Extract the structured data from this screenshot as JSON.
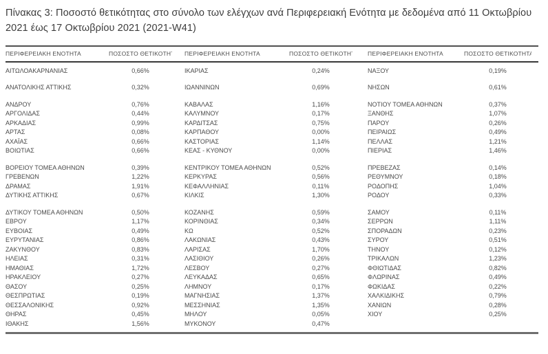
{
  "title": "Πίνακας 3: Ποσοστό θετικότητας στο σύνολο των ελέγχων ανά Περιφερειακή Ενότητα με δεδομένα από 11 Οκτωβρίου 2021 έως 17 Οκτωβρίου 2021 (2021-W41)",
  "table": {
    "headers": {
      "region": "ΠΕΡΙΦΕΡΕΙΑΚΗ ΕΝΟΤΗΤΑ",
      "rate": "ΠΟΣΟΣΤΟ ΘΕΤΙΚΟΤΗΤΑΣ"
    },
    "groups": [
      [
        [
          {
            "region": "ΑΙΤΩΛΟΑΚΑΡΝΑΝΙΑΣ",
            "value": "0,66%"
          },
          {
            "region": "ΙΚΑΡΙΑΣ",
            "value": "0,24%"
          },
          {
            "region": "ΝΑΞΟΥ",
            "value": "0,19%"
          }
        ]
      ],
      [
        [
          {
            "region": "ΑΝΑΤΟΛΙΚΗΣ ΑΤΤΙΚΗΣ",
            "value": "0,32%"
          },
          {
            "region": "ΙΩΑΝΝΙΝΩΝ",
            "value": "0,69%"
          },
          {
            "region": "ΝΗΣΩΝ",
            "value": "0,61%"
          }
        ]
      ],
      [
        [
          {
            "region": "ΑΝΔΡΟΥ",
            "value": "0,76%"
          },
          {
            "region": "ΚΑΒΑΛΑΣ",
            "value": "1,16%"
          },
          {
            "region": "ΝΟΤΙΟΥ ΤΟΜΕΑ ΑΘΗΝΩΝ",
            "value": "0,37%"
          }
        ],
        [
          {
            "region": "ΑΡΓΟΛΙΔΑΣ",
            "value": "0,44%"
          },
          {
            "region": "ΚΑΛΥΜΝΟΥ",
            "value": "0,17%"
          },
          {
            "region": "ΞΑΝΘΗΣ",
            "value": "1,07%"
          }
        ],
        [
          {
            "region": "ΑΡΚΑΔΙΑΣ",
            "value": "0,99%"
          },
          {
            "region": "ΚΑΡΔΙΤΣΑΣ",
            "value": "0,75%"
          },
          {
            "region": "ΠΑΡΟΥ",
            "value": "0,26%"
          }
        ],
        [
          {
            "region": "ΑΡΤΑΣ",
            "value": "0,08%"
          },
          {
            "region": "ΚΑΡΠΑΘΟΥ",
            "value": "0,00%"
          },
          {
            "region": "ΠΕΙΡΑΙΩΣ",
            "value": "0,49%"
          }
        ],
        [
          {
            "region": "ΑΧΑΪΑΣ",
            "value": "0,66%"
          },
          {
            "region": "ΚΑΣΤΟΡΙΑΣ",
            "value": "1,14%"
          },
          {
            "region": "ΠΕΛΛΑΣ",
            "value": "1,21%"
          }
        ],
        [
          {
            "region": "ΒΟΙΩΤΙΑΣ",
            "value": "0,66%"
          },
          {
            "region": "ΚΕΑΣ - ΚΥΘΝΟΥ",
            "value": "0,00%"
          },
          {
            "region": "ΠΙΕΡΙΑΣ",
            "value": "1,46%"
          }
        ]
      ],
      [
        [
          {
            "region": "ΒΟΡΕΙΟΥ ΤΟΜΕΑ ΑΘΗΝΩΝ",
            "value": "0,39%"
          },
          {
            "region": "ΚΕΝΤΡΙΚΟΥ ΤΟΜΕΑ ΑΘΗΝΩΝ",
            "value": "0,52%"
          },
          {
            "region": "ΠΡΕΒΕΖΑΣ",
            "value": "0,14%"
          }
        ],
        [
          {
            "region": "ΓΡΕΒΕΝΩΝ",
            "value": "1,22%"
          },
          {
            "region": "ΚΕΡΚΥΡΑΣ",
            "value": "0,56%"
          },
          {
            "region": "ΡΕΘΥΜΝΟΥ",
            "value": "0,18%"
          }
        ],
        [
          {
            "region": "ΔΡΑΜΑΣ",
            "value": "1,91%"
          },
          {
            "region": "ΚΕΦΑΛΛΗΝΙΑΣ",
            "value": "0,11%"
          },
          {
            "region": "ΡΟΔΟΠΗΣ",
            "value": "1,04%"
          }
        ],
        [
          {
            "region": "ΔΥΤΙΚΗΣ ΑΤΤΙΚΗΣ",
            "value": "0,67%"
          },
          {
            "region": "ΚΙΛΚΙΣ",
            "value": "1,30%"
          },
          {
            "region": "ΡΟΔΟΥ",
            "value": "0,33%"
          }
        ]
      ],
      [
        [
          {
            "region": "ΔΥΤΙΚΟΥ ΤΟΜΕΑ ΑΘΗΝΩΝ",
            "value": "0,50%"
          },
          {
            "region": "ΚΟΖΑΝΗΣ",
            "value": "0,59%"
          },
          {
            "region": "ΣΑΜΟΥ",
            "value": "0,11%"
          }
        ],
        [
          {
            "region": "ΕΒΡΟΥ",
            "value": "1,17%"
          },
          {
            "region": "ΚΟΡΙΝΘΙΑΣ",
            "value": "0,34%"
          },
          {
            "region": "ΣΕΡΡΩΝ",
            "value": "1,11%"
          }
        ],
        [
          {
            "region": "ΕΥΒΟΙΑΣ",
            "value": "0,49%"
          },
          {
            "region": "ΚΩ",
            "value": "0,52%"
          },
          {
            "region": "ΣΠΟΡΑΔΩΝ",
            "value": "0,23%"
          }
        ],
        [
          {
            "region": "ΕΥΡΥΤΑΝΙΑΣ",
            "value": "0,86%"
          },
          {
            "region": "ΛΑΚΩΝΙΑΣ",
            "value": "0,43%"
          },
          {
            "region": "ΣΥΡΟΥ",
            "value": "0,51%"
          }
        ],
        [
          {
            "region": "ΖΑΚΥΝΘΟΥ",
            "value": "0,83%"
          },
          {
            "region": "ΛΑΡΙΣΑΣ",
            "value": "1,70%"
          },
          {
            "region": "ΤΗΝΟΥ",
            "value": "0,12%"
          }
        ],
        [
          {
            "region": "ΗΛΕΙΑΣ",
            "value": "0,31%"
          },
          {
            "region": "ΛΑΣΙΘΙΟΥ",
            "value": "0,26%"
          },
          {
            "region": "ΤΡΙΚΑΛΩΝ",
            "value": "1,23%"
          }
        ],
        [
          {
            "region": "ΗΜΑΘΙΑΣ",
            "value": "1,72%"
          },
          {
            "region": "ΛΕΣΒΟΥ",
            "value": "0,27%"
          },
          {
            "region": "ΦΘΙΩΤΙΔΑΣ",
            "value": "0,82%"
          }
        ],
        [
          {
            "region": "ΗΡΑΚΛΕΙΟΥ",
            "value": "0,27%"
          },
          {
            "region": "ΛΕΥΚΑΔΑΣ",
            "value": "0,65%"
          },
          {
            "region": "ΦΛΩΡΙΝΑΣ",
            "value": "0,49%"
          }
        ],
        [
          {
            "region": "ΘΑΣΟΥ",
            "value": "0,25%"
          },
          {
            "region": "ΛΗΜΝΟΥ",
            "value": "0,17%"
          },
          {
            "region": "ΦΩΚΙΔΑΣ",
            "value": "0,22%"
          }
        ],
        [
          {
            "region": "ΘΕΣΠΡΩΤΙΑΣ",
            "value": "0,19%"
          },
          {
            "region": "ΜΑΓΝΗΣΙΑΣ",
            "value": "1,37%"
          },
          {
            "region": "ΧΑΛΚΙΔΙΚΗΣ",
            "value": "0,79%"
          }
        ],
        [
          {
            "region": "ΘΕΣΣΑΛΟΝΙΚΗΣ",
            "value": "0,92%"
          },
          {
            "region": "ΜΕΣΣΗΝΙΑΣ",
            "value": "1,35%"
          },
          {
            "region": "ΧΑΝΙΩΝ",
            "value": "0,28%"
          }
        ],
        [
          {
            "region": "ΘΗΡΑΣ",
            "value": "0,45%"
          },
          {
            "region": "ΜΗΛΟΥ",
            "value": "0,05%"
          },
          {
            "region": "ΧΙΟΥ",
            "value": "0,25%"
          }
        ],
        [
          {
            "region": "ΙΘΑΚΗΣ",
            "value": "1,56%"
          },
          {
            "region": "ΜΥΚΟΝΟΥ",
            "value": "0,47%"
          }
        ]
      ]
    ]
  },
  "colors": {
    "title_text": "#3c3c3c",
    "body_text": "#4a4a4a",
    "border_top": "#4f4f4f",
    "border_header": "#383838",
    "border_bottom": "#6e6e6e",
    "background": "#ffffff"
  }
}
